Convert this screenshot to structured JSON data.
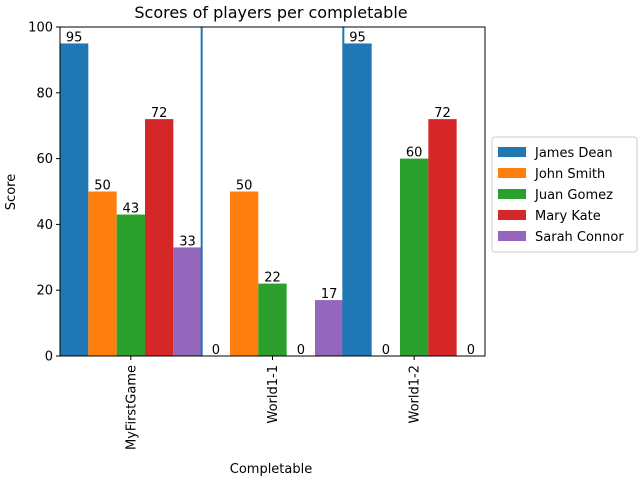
{
  "chart_data": {
    "type": "bar",
    "title": "Scores of players per completable",
    "xlabel": "Completable",
    "ylabel": "Score",
    "ylim": [
      0,
      100
    ],
    "yticks": [
      0,
      20,
      40,
      60,
      80,
      100
    ],
    "categories": [
      "MyFirstGame",
      "World1-1",
      "World1-2"
    ],
    "series": [
      {
        "name": "James Dean",
        "color": "#1f77b4",
        "values": [
          95,
          0,
          95
        ]
      },
      {
        "name": "John Smith",
        "color": "#ff7f0e",
        "values": [
          50,
          50,
          0
        ]
      },
      {
        "name": "Juan Gomez",
        "color": "#2ca02c",
        "values": [
          43,
          22,
          60
        ]
      },
      {
        "name": "Mary Kate",
        "color": "#d62728",
        "values": [
          72,
          0,
          72
        ]
      },
      {
        "name": "Sarah Connor",
        "color": "#9467bd",
        "values": [
          33,
          17,
          0
        ]
      }
    ],
    "separator_color": "#1f77b4",
    "grid": false,
    "legend_position": "right"
  }
}
